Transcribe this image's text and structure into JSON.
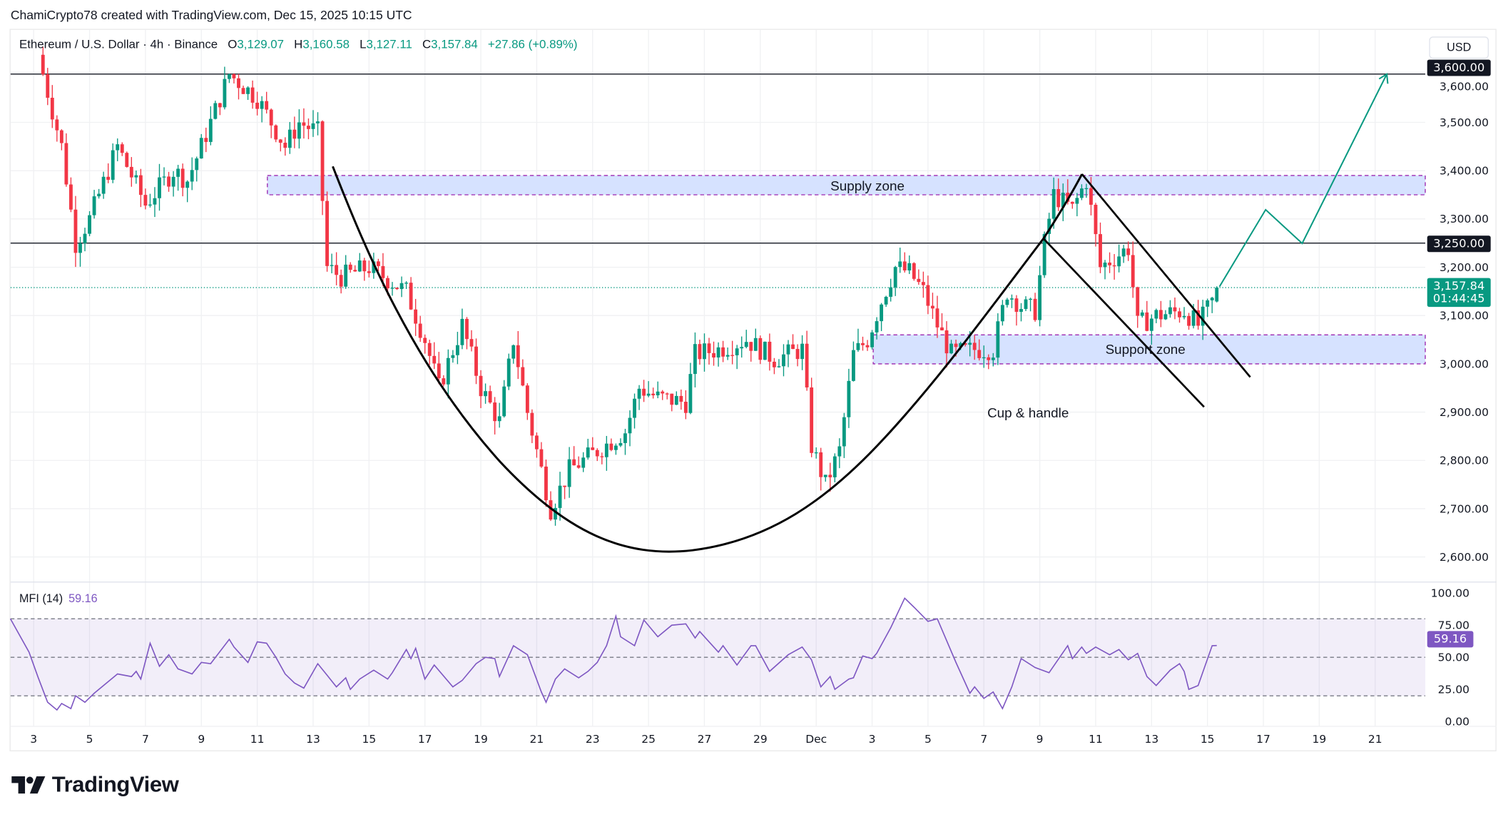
{
  "credit": "ChamiCrypto78 created with TradingView.com, Dec 15, 2025 10:15 UTC",
  "legend": {
    "symbol": "Ethereum / U.S. Dollar · 4h · Binance",
    "open_label": "O",
    "open": "3,129.07",
    "high_label": "H",
    "high": "3,160.58",
    "low_label": "L",
    "low": "3,127.11",
    "close_label": "C",
    "close": "3,157.84",
    "change": "+27.86 (+0.89%)"
  },
  "currency_button": "USD",
  "price_tags": {
    "level_high": "3,600.00",
    "level_mid": "3,250.00",
    "last_price": "3,157.84",
    "countdown": "01:44:45",
    "mfi_value": "59.16"
  },
  "mfi_legend": {
    "name": "MFI (14)",
    "value": "59.16"
  },
  "annotations": {
    "supply": "Supply zone",
    "support": "Support zone",
    "pattern": "Cup & handle"
  },
  "branding": "TradingView",
  "colors": {
    "up": "#089981",
    "down": "#f23645",
    "mfi": "#7e57c2",
    "zone": "#d6e2ff",
    "zone_border": "#9c27b0",
    "projection": "#089981"
  },
  "chart_data": [
    {
      "type": "candlestick",
      "title": "Ethereum / U.S. Dollar · 4h · Binance",
      "ylim": [
        2560,
        3700
      ],
      "y_ticks": [
        "2,600.00",
        "2,700.00",
        "2,800.00",
        "2,900.00",
        "3,000.00",
        "3,100.00",
        "3,200.00",
        "3,300.00",
        "3,400.00",
        "3,500.00",
        "3,600.00"
      ],
      "x_ticks": [
        "3",
        "5",
        "7",
        "9",
        "11",
        "13",
        "15",
        "17",
        "19",
        "21",
        "23",
        "25",
        "27",
        "29",
        "Dec",
        "3",
        "5",
        "7",
        "9",
        "11",
        "13",
        "15",
        "17",
        "19",
        "21"
      ],
      "horizontal_levels": [
        3600,
        3250
      ],
      "supply_zone": [
        3350,
        3390
      ],
      "support_zone": [
        3000,
        3060
      ],
      "last_candle": {
        "open": 3129.07,
        "high": 3160.58,
        "low": 3127.11,
        "close": 3157.84
      },
      "approx_close_path": [
        [
          "2025-11-03T08:00",
          3600
        ],
        [
          "2025-11-04T00:00",
          3450
        ],
        [
          "2025-11-04T12:00",
          3250
        ],
        [
          "2025-11-05T00:00",
          3300
        ],
        [
          "2025-11-06T00:00",
          3450
        ],
        [
          "2025-11-07T00:00",
          3330
        ],
        [
          "2025-11-08T00:00",
          3400
        ],
        [
          "2025-11-08T12:00",
          3380
        ],
        [
          "2025-11-09T00:00",
          3450
        ],
        [
          "2025-11-10T00:00",
          3600
        ],
        [
          "2025-11-11T00:00",
          3550
        ],
        [
          "2025-11-12T00:00",
          3450
        ],
        [
          "2025-11-12T12:00",
          3500
        ],
        [
          "2025-11-13T04:00",
          3480
        ],
        [
          "2025-11-13T12:00",
          3200
        ],
        [
          "2025-11-14T00:00",
          3180
        ],
        [
          "2025-11-15T00:00",
          3200
        ],
        [
          "2025-11-16T08:00",
          3150
        ],
        [
          "2025-11-17T00:00",
          3050
        ],
        [
          "2025-11-17T12:00",
          2950
        ],
        [
          "2025-11-18T08:00",
          3080
        ],
        [
          "2025-11-19T00:00",
          2950
        ],
        [
          "2025-11-19T16:00",
          2880
        ],
        [
          "2025-11-20T04:00",
          3050
        ],
        [
          "2025-11-20T16:00",
          2900
        ],
        [
          "2025-11-21T04:00",
          2780
        ],
        [
          "2025-11-21T12:00",
          2700
        ],
        [
          "2025-11-22T04:00",
          2780
        ],
        [
          "2025-11-23T04:00",
          2820
        ],
        [
          "2025-11-24T04:00",
          2860
        ],
        [
          "2025-11-24T16:00",
          2950
        ],
        [
          "2025-11-25T08:00",
          2930
        ],
        [
          "2025-11-26T08:00",
          2920
        ],
        [
          "2025-11-26T16:00",
          3020
        ],
        [
          "2025-11-27T12:00",
          3030
        ],
        [
          "2025-11-28T12:00",
          3050
        ],
        [
          "2025-11-29T12:00",
          3010
        ],
        [
          "2025-11-30T12:00",
          3030
        ],
        [
          "2025-11-30T20:00",
          2830
        ],
        [
          "2025-12-01T08:00",
          2750
        ],
        [
          "2025-12-01T20:00",
          2820
        ],
        [
          "2025-12-02T08:00",
          3020
        ],
        [
          "2025-12-02T20:00",
          3050
        ],
        [
          "2025-12-03T08:00",
          3130
        ],
        [
          "2025-12-03T20:00",
          3200
        ],
        [
          "2025-12-04T08:00",
          3190
        ],
        [
          "2025-12-04T20:00",
          3150
        ],
        [
          "2025-12-05T08:00",
          3080
        ],
        [
          "2025-12-05T20:00",
          3020
        ],
        [
          "2025-12-06T16:00",
          3030
        ],
        [
          "2025-12-07T08:00",
          3030
        ],
        [
          "2025-12-07T20:00",
          3150
        ],
        [
          "2025-12-08T08:00",
          3120
        ],
        [
          "2025-12-08T20:00",
          3110
        ],
        [
          "2025-12-09T04:00",
          3250
        ],
        [
          "2025-12-09T12:00",
          3350
        ],
        [
          "2025-12-10T04:00",
          3320
        ],
        [
          "2025-12-10T16:00",
          3380
        ],
        [
          "2025-12-11T04:00",
          3200
        ],
        [
          "2025-12-11T16:00",
          3220
        ],
        [
          "2025-12-12T04:00",
          3240
        ],
        [
          "2025-12-12T12:00",
          3080
        ],
        [
          "2025-12-13T04:00",
          3100
        ],
        [
          "2025-12-14T04:00",
          3110
        ],
        [
          "2025-12-14T16:00",
          3080
        ],
        [
          "2025-12-15T04:00",
          3129.07
        ],
        [
          "2025-12-15T08:00",
          3157.84
        ]
      ]
    },
    {
      "type": "line",
      "title": "MFI (14)",
      "ylim": [
        0,
        100
      ],
      "y_ticks": [
        "0.00",
        "25.00",
        "50.00",
        "75.00",
        "100.00"
      ],
      "bands": [
        20,
        50,
        80
      ],
      "series": [
        {
          "name": "MFI (14)",
          "points": [
            [
              "2025-11-02T04:00",
              80
            ],
            [
              "2025-11-02T20:00",
              54
            ],
            [
              "2025-11-03T04:00",
              34
            ],
            [
              "2025-11-03T12:00",
              15
            ],
            [
              "2025-11-03T20:00",
              9
            ],
            [
              "2025-11-04T00:00",
              14
            ],
            [
              "2025-11-04T08:00",
              10
            ],
            [
              "2025-11-04T12:00",
              20
            ],
            [
              "2025-11-04T20:00",
              15
            ],
            [
              "2025-11-05T04:00",
              22
            ],
            [
              "2025-11-06T00:00",
              37
            ],
            [
              "2025-11-06T12:00",
              35
            ],
            [
              "2025-11-06T16:00",
              39
            ],
            [
              "2025-11-06T20:00",
              33
            ],
            [
              "2025-11-07T04:00",
              61
            ],
            [
              "2025-11-07T12:00",
              43
            ],
            [
              "2025-11-07T20:00",
              52
            ],
            [
              "2025-11-08T04:00",
              41
            ],
            [
              "2025-11-08T16:00",
              37
            ],
            [
              "2025-11-09T00:00",
              46
            ],
            [
              "2025-11-09T08:00",
              45
            ],
            [
              "2025-11-10T00:00",
              64
            ],
            [
              "2025-11-10T04:00",
              58
            ],
            [
              "2025-11-10T16:00",
              46
            ],
            [
              "2025-11-11T00:00",
              62
            ],
            [
              "2025-11-11T08:00",
              61
            ],
            [
              "2025-11-11T16:00",
              50
            ],
            [
              "2025-11-12T00:00",
              37
            ],
            [
              "2025-11-12T08:00",
              30
            ],
            [
              "2025-11-12T16:00",
              26
            ],
            [
              "2025-11-13T04:00",
              45
            ],
            [
              "2025-11-13T12:00",
              36
            ],
            [
              "2025-11-13T20:00",
              27
            ],
            [
              "2025-11-14T04:00",
              34
            ],
            [
              "2025-11-14T08:00",
              25
            ],
            [
              "2025-11-14T16:00",
              33
            ],
            [
              "2025-11-15T04:00",
              40
            ],
            [
              "2025-11-15T16:00",
              33
            ],
            [
              "2025-11-15T20:00",
              38
            ],
            [
              "2025-11-16T08:00",
              56
            ],
            [
              "2025-11-16T12:00",
              49
            ],
            [
              "2025-11-16T16:00",
              57
            ],
            [
              "2025-11-17T00:00",
              33
            ],
            [
              "2025-11-17T08:00",
              44
            ],
            [
              "2025-11-18T00:00",
              27
            ],
            [
              "2025-11-18T08:00",
              32
            ],
            [
              "2025-11-18T20:00",
              45
            ],
            [
              "2025-11-19T04:00",
              50
            ],
            [
              "2025-11-19T12:00",
              49
            ],
            [
              "2025-11-19T16:00",
              35
            ],
            [
              "2025-11-20T04:00",
              59
            ],
            [
              "2025-11-20T16:00",
              52
            ],
            [
              "2025-11-21T04:00",
              23
            ],
            [
              "2025-11-21T08:00",
              15
            ],
            [
              "2025-11-21T16:00",
              33
            ],
            [
              "2025-11-22T00:00",
              41
            ],
            [
              "2025-11-22T12:00",
              34
            ],
            [
              "2025-11-22T20:00",
              39
            ],
            [
              "2025-11-23T04:00",
              46
            ],
            [
              "2025-11-23T12:00",
              59
            ],
            [
              "2025-11-23T20:00",
              82
            ],
            [
              "2025-11-24T00:00",
              66
            ],
            [
              "2025-11-24T12:00",
              59
            ],
            [
              "2025-11-24T20:00",
              79
            ],
            [
              "2025-11-25T08:00",
              66
            ],
            [
              "2025-11-25T20:00",
              75
            ],
            [
              "2025-11-26T08:00",
              76
            ],
            [
              "2025-11-26T16:00",
              65
            ],
            [
              "2025-11-26T20:00",
              70
            ],
            [
              "2025-11-27T12:00",
              54
            ],
            [
              "2025-11-27T16:00",
              59
            ],
            [
              "2025-11-28T04:00",
              44
            ],
            [
              "2025-11-28T16:00",
              59
            ],
            [
              "2025-11-28T20:00",
              59
            ],
            [
              "2025-11-29T08:00",
              39
            ],
            [
              "2025-11-30T00:00",
              52
            ],
            [
              "2025-11-30T12:00",
              58
            ],
            [
              "2025-11-30T20:00",
              48
            ],
            [
              "2025-12-01T04:00",
              27
            ],
            [
              "2025-12-01T12:00",
              35
            ],
            [
              "2025-12-01T16:00",
              25
            ],
            [
              "2025-12-02T04:00",
              33
            ],
            [
              "2025-12-02T08:00",
              34
            ],
            [
              "2025-12-02T16:00",
              51
            ],
            [
              "2025-12-03T00:00",
              49
            ],
            [
              "2025-12-03T04:00",
              53
            ],
            [
              "2025-12-03T16:00",
              73
            ],
            [
              "2025-12-04T04:00",
              96
            ],
            [
              "2025-12-04T12:00",
              89
            ],
            [
              "2025-12-05T00:00",
              78
            ],
            [
              "2025-12-05T08:00",
              80
            ],
            [
              "2025-12-06T00:00",
              46
            ],
            [
              "2025-12-06T12:00",
              22
            ],
            [
              "2025-12-06T16:00",
              27
            ],
            [
              "2025-12-07T00:00",
              18
            ],
            [
              "2025-12-07T08:00",
              23
            ],
            [
              "2025-12-07T16:00",
              10
            ],
            [
              "2025-12-08T00:00",
              27
            ],
            [
              "2025-12-08T08:00",
              49
            ],
            [
              "2025-12-08T20:00",
              42
            ],
            [
              "2025-12-09T08:00",
              38
            ],
            [
              "2025-12-10T00:00",
              59
            ],
            [
              "2025-12-10T04:00",
              49
            ],
            [
              "2025-12-10T12:00",
              58
            ],
            [
              "2025-12-10T16:00",
              53
            ],
            [
              "2025-12-11T00:00",
              58
            ],
            [
              "2025-12-11T12:00",
              52
            ],
            [
              "2025-12-11T20:00",
              56
            ],
            [
              "2025-12-12T04:00",
              48
            ],
            [
              "2025-12-12T12:00",
              53
            ],
            [
              "2025-12-12T20:00",
              35
            ],
            [
              "2025-12-13T04:00",
              28
            ],
            [
              "2025-12-13T16:00",
              40
            ],
            [
              "2025-12-14T00:00",
              45
            ],
            [
              "2025-12-14T04:00",
              39
            ],
            [
              "2025-12-14T08:00",
              25
            ],
            [
              "2025-12-14T16:00",
              28
            ],
            [
              "2025-12-15T04:00",
              59
            ],
            [
              "2025-12-15T08:00",
              59.16
            ]
          ]
        }
      ]
    }
  ]
}
